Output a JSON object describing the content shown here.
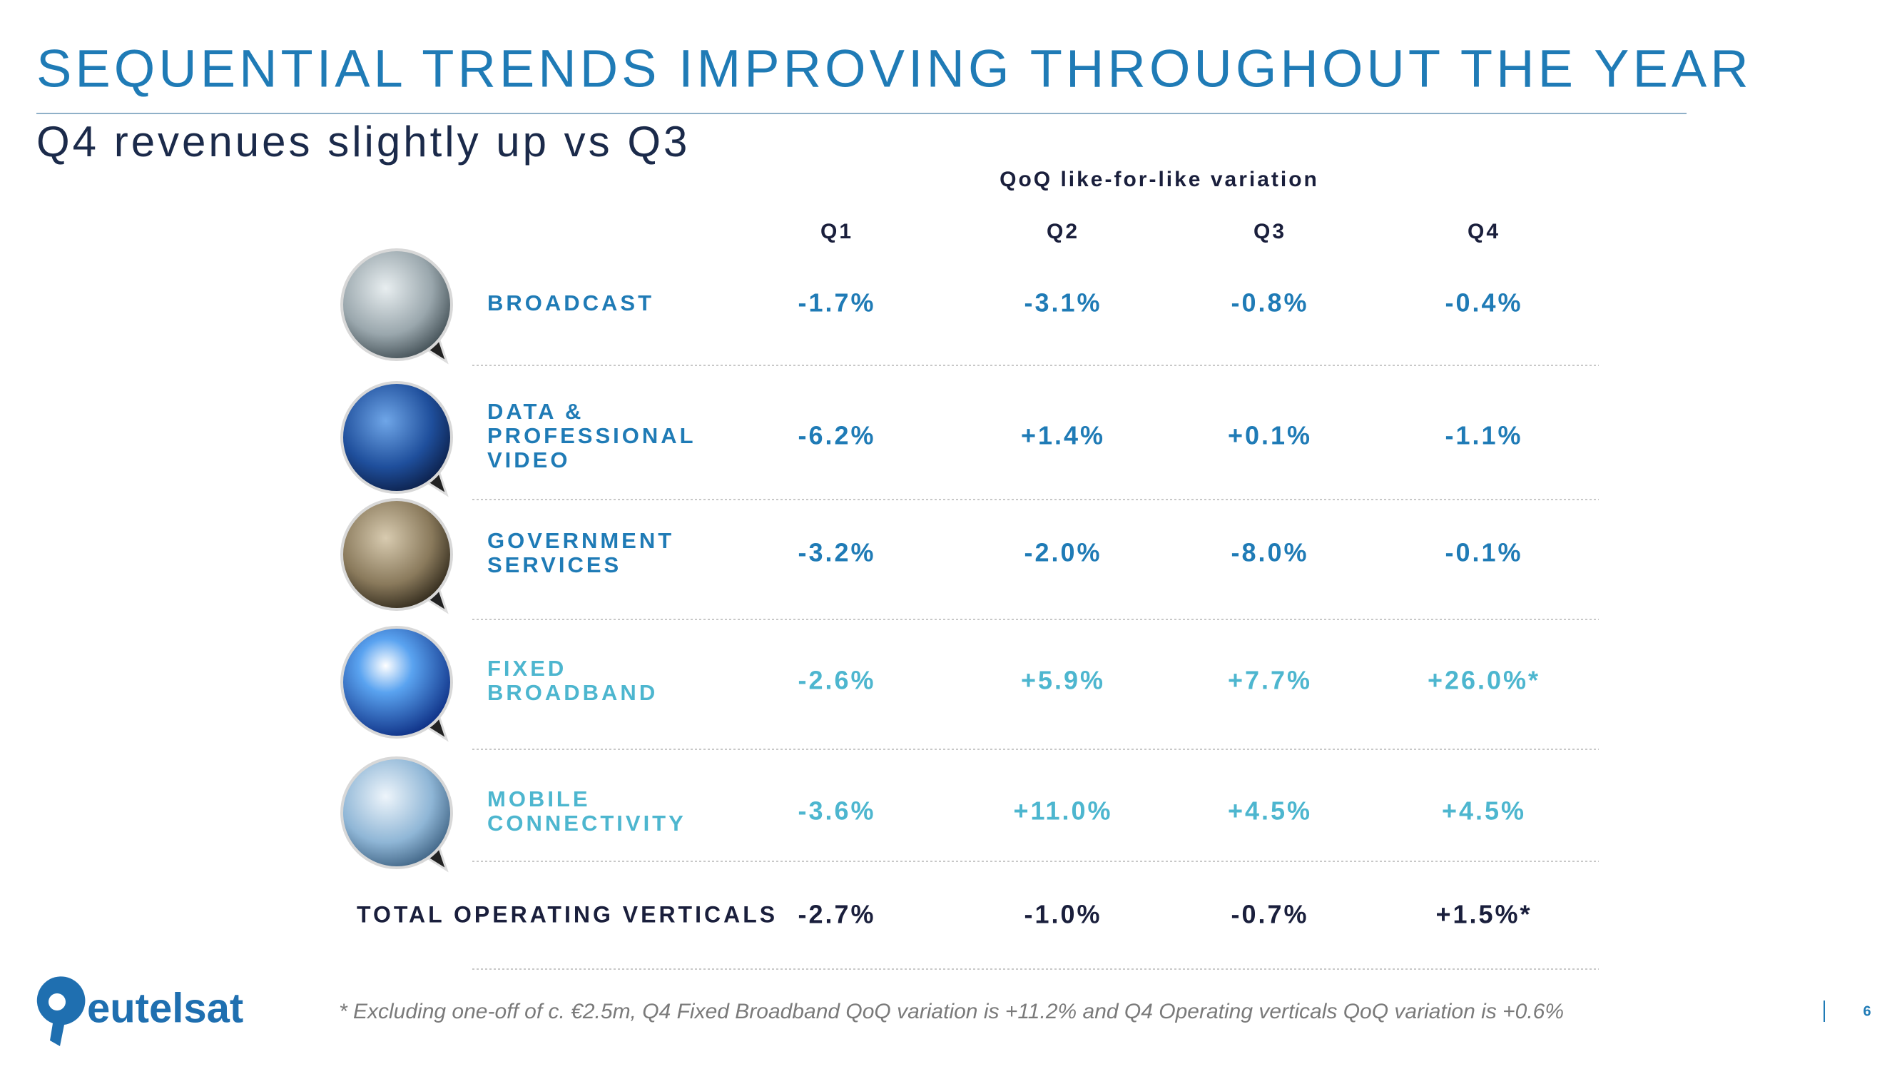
{
  "header": {
    "title": "SEQUENTIAL TRENDS IMPROVING THROUGHOUT THE YEAR",
    "subtitle": "Q4 revenues slightly up vs Q3"
  },
  "table": {
    "caption": "QoQ like-for-like variation",
    "columns": [
      "Q1",
      "Q2",
      "Q3",
      "Q4"
    ],
    "rows": [
      {
        "label": [
          "BROADCAST"
        ],
        "color": "#1f7bb6",
        "values": [
          "-1.7%",
          "-3.1%",
          "-0.8%",
          "-0.4%"
        ]
      },
      {
        "label": [
          "DATA &",
          "PROFESSIONAL",
          "VIDEO"
        ],
        "color": "#1f7bb6",
        "values": [
          "-6.2%",
          "+1.4%",
          "+0.1%",
          "-1.1%"
        ]
      },
      {
        "label": [
          "GOVERNMENT",
          "SERVICES"
        ],
        "color": "#1f7bb6",
        "values": [
          "-3.2%",
          "-2.0%",
          "-8.0%",
          "-0.1%"
        ]
      },
      {
        "label": [
          "FIXED",
          "BROADBAND"
        ],
        "color": "#4db6cf",
        "values": [
          "-2.6%",
          "+5.9%",
          "+7.7%",
          "+26.0%*"
        ]
      },
      {
        "label": [
          "MOBILE",
          "CONNECTIVITY"
        ],
        "color": "#4db6cf",
        "values": [
          "-3.6%",
          "+11.0%",
          "+4.5%",
          "+4.5%"
        ]
      }
    ],
    "total": {
      "label": "TOTAL OPERATING VERTICALS",
      "color": "#1a1f3c",
      "values": [
        "-2.7%",
        "-1.0%",
        "-0.7%",
        "+1.5%*"
      ]
    }
  },
  "footnote": "* Excluding one-off of c. €2.5m, Q4 Fixed Broadband QoQ variation is +11.2% and Q4 Operating verticals QoQ variation is +0.6%",
  "logo": "eutelsat",
  "page_number": "6"
}
